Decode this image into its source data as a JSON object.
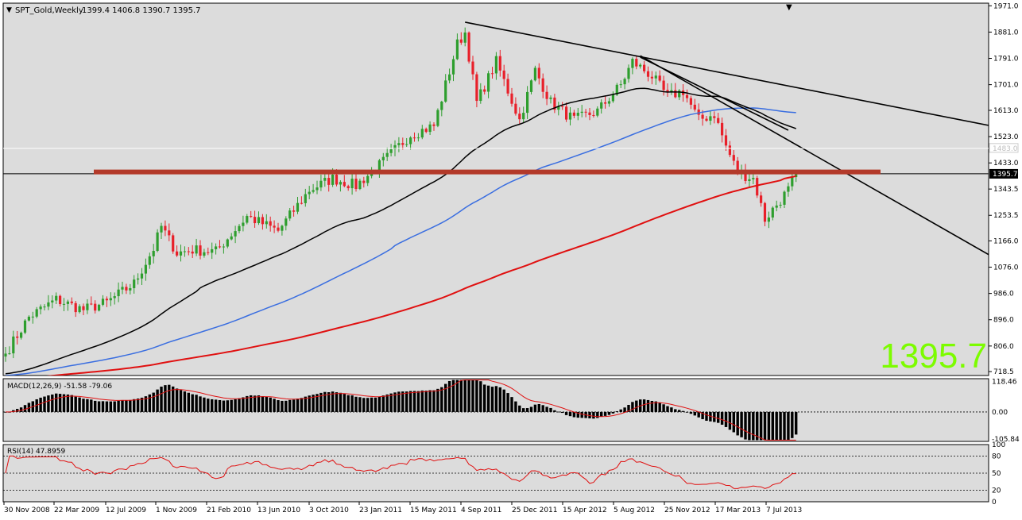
{
  "chart_data": {
    "type": "candlestick",
    "symbol_header": "SPT_Gold,Weekly",
    "ohlc_header": "1399.4 1406.8 1390.7 1395.7",
    "big_price": "1395.7",
    "current_price_tag": "1395.7",
    "ref_price_tag": "1483.0",
    "colors": {
      "chart_bg": "#dcdcdc",
      "bull": "#2e9e2e",
      "bear": "#e8202a",
      "sma_black": "#000000",
      "sma_blue": "#3a6ee0",
      "sma_red": "#e01010",
      "resistance": "#b33a2a",
      "big_price": "#7cfc00",
      "macd_hist": "#000000",
      "macd_signal": "#e01010",
      "rsi_line": "#e01010"
    },
    "price_axis": {
      "ticks": [
        "1971.0",
        "1881.0",
        "1791.0",
        "1701.0",
        "1613.0",
        "1523.0",
        "1433.0",
        "1343.5",
        "1253.5",
        "1166.0",
        "1076.0",
        "986.0",
        "896.0",
        "806.0",
        "718.5"
      ],
      "min": 705,
      "max": 1980
    },
    "x_labels": [
      "30 Nov 2008",
      "22 Mar 2009",
      "12 Jul 2009",
      "1 Nov 2009",
      "21 Feb 2010",
      "13 Jun 2010",
      "3 Oct 2010",
      "23 Jan 2011",
      "15 May 2011",
      "4 Sep 2011",
      "25 Dec 2011",
      "15 Apr 2012",
      "5 Aug 2012",
      "25 Nov 2012",
      "17 Mar 2013",
      "7 Jul 2013"
    ],
    "anchors": [
      {
        "week": 0,
        "close": 780
      },
      {
        "week": 6,
        "close": 905
      },
      {
        "week": 13,
        "close": 965
      },
      {
        "week": 20,
        "close": 930
      },
      {
        "week": 26,
        "close": 955
      },
      {
        "week": 33,
        "close": 1020
      },
      {
        "week": 38,
        "close": 1140
      },
      {
        "week": 40,
        "close": 1215
      },
      {
        "week": 44,
        "close": 1125
      },
      {
        "week": 48,
        "close": 1135
      },
      {
        "week": 54,
        "close": 1130
      },
      {
        "week": 62,
        "close": 1250
      },
      {
        "week": 70,
        "close": 1200
      },
      {
        "week": 78,
        "close": 1340
      },
      {
        "week": 84,
        "close": 1380
      },
      {
        "week": 90,
        "close": 1355
      },
      {
        "week": 96,
        "close": 1425
      },
      {
        "week": 104,
        "close": 1530
      },
      {
        "week": 110,
        "close": 1560
      },
      {
        "week": 116,
        "close": 1840
      },
      {
        "week": 118,
        "close": 1880
      },
      {
        "week": 121,
        "close": 1640
      },
      {
        "week": 126,
        "close": 1780
      },
      {
        "week": 132,
        "close": 1580
      },
      {
        "week": 136,
        "close": 1750
      },
      {
        "week": 140,
        "close": 1640
      },
      {
        "week": 146,
        "close": 1580
      },
      {
        "week": 152,
        "close": 1610
      },
      {
        "week": 158,
        "close": 1700
      },
      {
        "week": 161,
        "close": 1780
      },
      {
        "week": 166,
        "close": 1730
      },
      {
        "week": 170,
        "close": 1660
      },
      {
        "week": 174,
        "close": 1680
      },
      {
        "week": 178,
        "close": 1580
      },
      {
        "week": 182,
        "close": 1600
      },
      {
        "week": 185,
        "close": 1490
      },
      {
        "week": 188,
        "close": 1400
      },
      {
        "week": 192,
        "close": 1380
      },
      {
        "week": 195,
        "close": 1240
      },
      {
        "week": 198,
        "close": 1290
      },
      {
        "week": 201,
        "close": 1340
      },
      {
        "week": 203,
        "close": 1395.7
      }
    ],
    "macd": {
      "label": "MACD(12,26,9) -51.58 -79.06",
      "ticks": [
        "118.46",
        "0.00",
        "-105.84"
      ],
      "min": -115,
      "max": 130
    },
    "rsi": {
      "label": "RSI(14) 47.8959",
      "ticks": [
        "100",
        "80",
        "50",
        "20",
        "0"
      ],
      "levels": [
        80,
        50,
        20
      ]
    },
    "trendlines": [
      {
        "from": {
          "week": 118,
          "price": 1915
        },
        "to": {
          "week": 253,
          "price": 1560
        }
      },
      {
        "from": {
          "week": 163,
          "price": 1800
        },
        "to": {
          "week": 253,
          "price": 1115
        }
      },
      {
        "from": {
          "week": 163,
          "price": 1795
        },
        "to": {
          "week": 201,
          "price": 1545
        }
      }
    ],
    "resistance_price": 1402
  }
}
